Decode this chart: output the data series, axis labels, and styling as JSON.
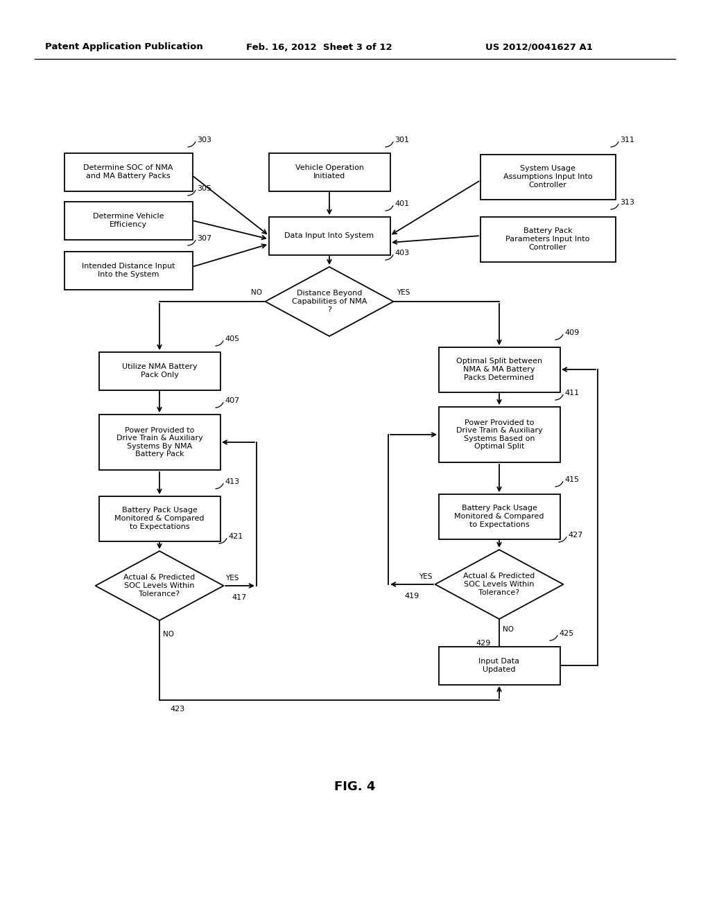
{
  "title_left": "Patent Application Publication",
  "title_mid": "Feb. 16, 2012  Sheet 3 of 12",
  "title_right": "US 2012/0041627 A1",
  "fig_label": "FIG. 4",
  "background": "#ffffff",
  "lw": 1.3,
  "fontsize_label": 8.0,
  "fontsize_ref": 8.0,
  "fontsize_header": 9.5,
  "fontsize_fig": 13
}
